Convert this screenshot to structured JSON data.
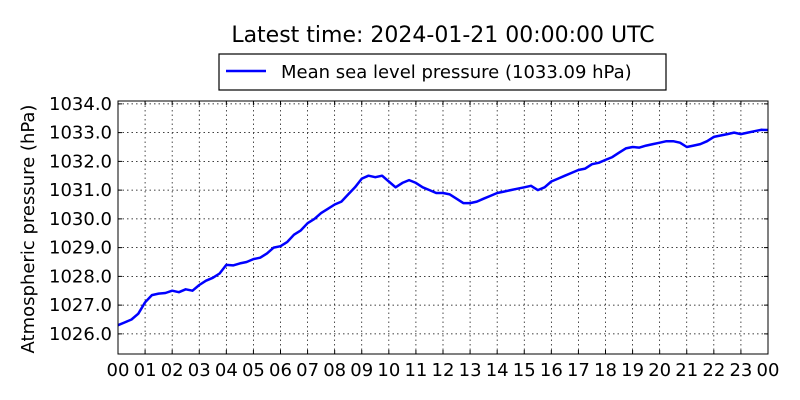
{
  "chart_data": {
    "type": "line",
    "title": "Latest time: 2024-01-21 00:00:00 UTC",
    "xlabel": "",
    "ylabel": "Atmospheric pressure (hPa)",
    "xlim": [
      0,
      24
    ],
    "ylim": [
      1025.3,
      1034.1
    ],
    "x_ticks": [
      0,
      1,
      2,
      3,
      4,
      5,
      6,
      7,
      8,
      9,
      10,
      11,
      12,
      13,
      14,
      15,
      16,
      17,
      18,
      19,
      20,
      21,
      22,
      23,
      24
    ],
    "x_tick_labels": [
      "00",
      "01",
      "02",
      "03",
      "04",
      "05",
      "06",
      "07",
      "08",
      "09",
      "10",
      "11",
      "12",
      "13",
      "14",
      "15",
      "16",
      "17",
      "18",
      "19",
      "20",
      "21",
      "22",
      "23",
      "00"
    ],
    "y_ticks": [
      1026.0,
      1027.0,
      1028.0,
      1029.0,
      1030.0,
      1031.0,
      1032.0,
      1033.0,
      1034.0
    ],
    "y_tick_labels": [
      "1026.0",
      "1027.0",
      "1028.0",
      "1029.0",
      "1030.0",
      "1031.0",
      "1032.0",
      "1033.0",
      "1034.0"
    ],
    "grid": true,
    "legend_position": "top-center",
    "series": [
      {
        "name": "Mean sea level pressure (1033.09 hPa)",
        "color": "#0000ff",
        "x": [
          0,
          0.25,
          0.5,
          0.75,
          1,
          1.25,
          1.5,
          1.75,
          2,
          2.25,
          2.5,
          2.75,
          3,
          3.25,
          3.5,
          3.75,
          4,
          4.25,
          4.5,
          4.75,
          5,
          5.25,
          5.5,
          5.75,
          6,
          6.25,
          6.5,
          6.75,
          7,
          7.25,
          7.5,
          7.75,
          8,
          8.25,
          8.5,
          8.75,
          9,
          9.25,
          9.5,
          9.75,
          10,
          10.25,
          10.5,
          10.75,
          11,
          11.25,
          11.5,
          11.75,
          12,
          12.25,
          12.5,
          12.75,
          13,
          13.25,
          13.5,
          13.75,
          14,
          14.25,
          14.5,
          14.75,
          15,
          15.25,
          15.5,
          15.75,
          16,
          16.25,
          16.5,
          16.75,
          17,
          17.25,
          17.5,
          17.75,
          18,
          18.25,
          18.5,
          18.75,
          19,
          19.25,
          19.5,
          19.75,
          20,
          20.25,
          20.5,
          20.75,
          21,
          21.25,
          21.5,
          21.75,
          22,
          22.25,
          22.5,
          22.75,
          23,
          23.25,
          23.5,
          23.75,
          24
        ],
        "y": [
          1026.3,
          1026.4,
          1026.5,
          1026.7,
          1027.1,
          1027.35,
          1027.4,
          1027.42,
          1027.5,
          1027.45,
          1027.55,
          1027.5,
          1027.7,
          1027.85,
          1027.95,
          1028.1,
          1028.4,
          1028.38,
          1028.45,
          1028.5,
          1028.6,
          1028.65,
          1028.8,
          1029.0,
          1029.05,
          1029.2,
          1029.45,
          1029.6,
          1029.85,
          1030.0,
          1030.2,
          1030.35,
          1030.5,
          1030.6,
          1030.85,
          1031.1,
          1031.4,
          1031.5,
          1031.45,
          1031.5,
          1031.3,
          1031.1,
          1031.25,
          1031.35,
          1031.25,
          1031.1,
          1031.0,
          1030.9,
          1030.9,
          1030.85,
          1030.7,
          1030.55,
          1030.55,
          1030.6,
          1030.7,
          1030.8,
          1030.9,
          1030.95,
          1031.0,
          1031.05,
          1031.1,
          1031.15,
          1031.0,
          1031.1,
          1031.3,
          1031.4,
          1031.5,
          1031.6,
          1031.7,
          1031.75,
          1031.9,
          1031.95,
          1032.05,
          1032.15,
          1032.3,
          1032.45,
          1032.5,
          1032.48,
          1032.55,
          1032.6,
          1032.65,
          1032.7,
          1032.7,
          1032.65,
          1032.5,
          1032.55,
          1032.6,
          1032.7,
          1032.85,
          1032.9,
          1032.95,
          1033.0,
          1032.95,
          1033.0,
          1033.05,
          1033.1,
          1033.09
        ]
      }
    ]
  }
}
